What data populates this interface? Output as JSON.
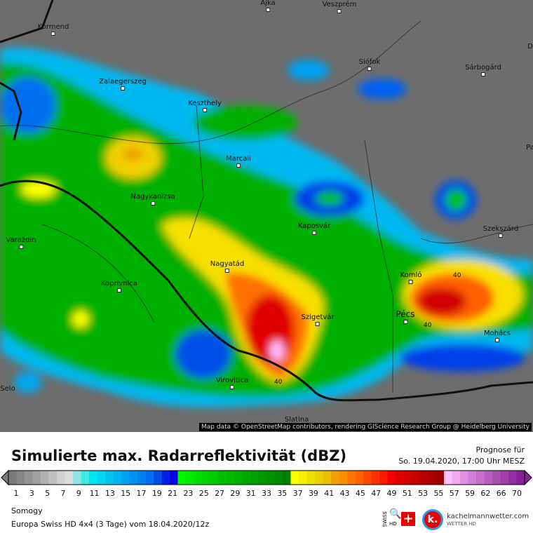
{
  "map": {
    "cities": [
      {
        "name": "Ajka"
      },
      {
        "name": "Veszprém"
      },
      {
        "name": "Körmend"
      },
      {
        "name": "Siófok"
      },
      {
        "name": "Sárbogárd"
      },
      {
        "name": "Zalaegerszeg"
      },
      {
        "name": "Keszthely"
      },
      {
        "name": "Marcali"
      },
      {
        "name": "Nagykanizsa"
      },
      {
        "name": "Kaposvár"
      },
      {
        "name": "Szekszárd"
      },
      {
        "name": "Varaždin"
      },
      {
        "name": "Nagyatád"
      },
      {
        "name": "Koprivnica"
      },
      {
        "name": "Komló"
      },
      {
        "name": "Pécs"
      },
      {
        "name": "Szigetvár"
      },
      {
        "name": "Mohács"
      },
      {
        "name": "Virovitica"
      },
      {
        "name": "Selo"
      },
      {
        "name": "Slatina"
      },
      {
        "name": "D"
      },
      {
        "name": "Pa"
      }
    ],
    "contour_labels": [
      "40",
      "40",
      "40"
    ],
    "attribution": "Map data © OpenStreetMap contributors, rendering GIScience Research Group @ Heidelberg University"
  },
  "legend": {
    "title": "Simulierte max. Radarreflektivität (dBZ)",
    "forecast_label": "Prognose für",
    "forecast_time": "So. 19.04.2020, 17:00 Uhr MESZ",
    "ticks": [
      "1",
      "3",
      "5",
      "7",
      "9",
      "11",
      "13",
      "15",
      "17",
      "19",
      "21",
      "23",
      "25",
      "27",
      "29",
      "31",
      "33",
      "35",
      "37",
      "39",
      "41",
      "43",
      "45",
      "47",
      "49",
      "51",
      "53",
      "55",
      "57",
      "59",
      "62",
      "66",
      "70"
    ],
    "colors": [
      "#7a7a7a",
      "#868686",
      "#939393",
      "#a0a0a0",
      "#b0b0b0",
      "#c0c0c0",
      "#d0d0d0",
      "#dcdcdc",
      "#90e4e4",
      "#40e8e8",
      "#00e4f0",
      "#00d4f0",
      "#00c4f0",
      "#00b4f0",
      "#00a4f0",
      "#0090f0",
      "#0080f0",
      "#0070f0",
      "#0050e8",
      "#0020e8",
      "#0000e0",
      "#00f400",
      "#00ec00",
      "#00e000",
      "#00d400",
      "#00cc00",
      "#00c000",
      "#00b800",
      "#00b000",
      "#00a800",
      "#00a000",
      "#009800",
      "#009000",
      "#008800",
      "#007e00",
      "#ffff00",
      "#f8f000",
      "#f0e000",
      "#e8d000",
      "#e8c000",
      "#f0a000",
      "#f89000",
      "#ff7800",
      "#ff6000",
      "#ff4800",
      "#ff3000",
      "#ff1800",
      "#f00000",
      "#e00000",
      "#d00000",
      "#c80000",
      "#b80000",
      "#a80000",
      "#a00000",
      "#ffc0ff",
      "#f0a8f0",
      "#e090e0",
      "#d080d8",
      "#c870c8",
      "#b860c0",
      "#a850b0",
      "#a040a8",
      "#9030a0",
      "#882098"
    ]
  },
  "footer": {
    "region": "Somogy",
    "model": "Europa Swiss HD 4x4 (3 Tage) vom  18.04.2020/12z",
    "brand": "kachelmannwetter.com",
    "brand_sub": "WETTER HD",
    "swiss_label": "SWISS",
    "hd_label": "HD",
    "logo_letter": "k."
  }
}
